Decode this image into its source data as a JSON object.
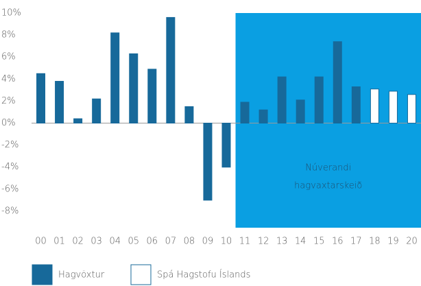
{
  "chart_data": {
    "type": "bar",
    "categories": [
      "00",
      "01",
      "02",
      "03",
      "04",
      "05",
      "06",
      "07",
      "08",
      "09",
      "10",
      "11",
      "12",
      "13",
      "14",
      "15",
      "16",
      "17",
      "18",
      "19",
      "20"
    ],
    "series": [
      {
        "name": "Hagvöxtur",
        "color": "#17699a",
        "values": [
          4.5,
          3.8,
          0.4,
          2.2,
          8.2,
          6.3,
          4.9,
          9.6,
          1.5,
          -7,
          -4,
          1.9,
          1.2,
          4.2,
          2.1,
          4.2,
          7.4,
          3.3,
          null,
          null,
          null
        ]
      },
      {
        "name": "Spá Hagstofu Íslands",
        "color": "#ffffff",
        "values": [
          null,
          null,
          null,
          null,
          null,
          null,
          null,
          null,
          null,
          null,
          null,
          null,
          null,
          null,
          null,
          null,
          null,
          null,
          3.1,
          2.9,
          2.6
        ]
      }
    ],
    "ylim": [
      -9.5,
      10
    ],
    "yticks": [
      {
        "value": -8,
        "label": "-8%"
      },
      {
        "value": -6,
        "label": "-6%"
      },
      {
        "value": -4,
        "label": "-4%"
      },
      {
        "value": -2,
        "label": "-2%"
      },
      {
        "value": 0,
        "label": "0%"
      },
      {
        "value": 2,
        "label": "2%"
      },
      {
        "value": 4,
        "label": "4%"
      },
      {
        "value": 6,
        "label": "6%"
      },
      {
        "value": 8,
        "label": "8%"
      },
      {
        "value": 10,
        "label": "10%"
      }
    ],
    "highlight": {
      "from": "11",
      "color": "#0a9fe2",
      "label_lines": [
        "Núverandi",
        "hagvaxtarskeið"
      ]
    },
    "legend": "bottom-left"
  }
}
